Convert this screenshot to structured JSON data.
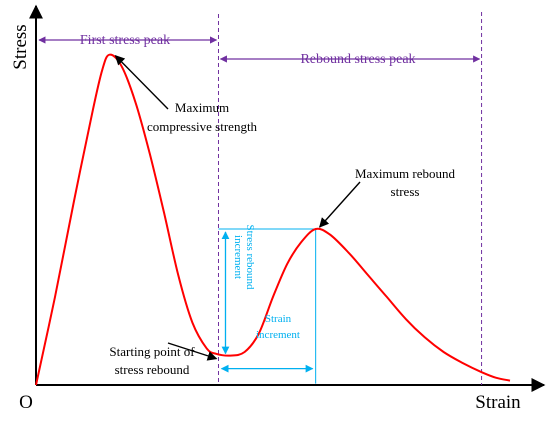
{
  "chart_data": {
    "type": "line",
    "xlabel": "Strain",
    "ylabel": "Stress",
    "origin_label": "O",
    "grid": false,
    "legend": "none",
    "x_range": [
      0,
      1
    ],
    "y_range": [
      0,
      1
    ],
    "series": [
      {
        "color": "#ff0000",
        "x": [
          0.0,
          0.04,
          0.08,
          0.12,
          0.14,
          0.155,
          0.18,
          0.21,
          0.24,
          0.27,
          0.3,
          0.33,
          0.36,
          0.38,
          0.41,
          0.44,
          0.47,
          0.5,
          0.53,
          0.56,
          0.59,
          0.62,
          0.66,
          0.7,
          0.74,
          0.78,
          0.82,
          0.86,
          0.9,
          0.94,
          0.97,
          1.0
        ],
        "y": [
          0.0,
          0.24,
          0.5,
          0.75,
          0.86,
          0.9,
          0.87,
          0.77,
          0.63,
          0.47,
          0.3,
          0.17,
          0.1,
          0.085,
          0.08,
          0.09,
          0.14,
          0.24,
          0.33,
          0.39,
          0.425,
          0.41,
          0.36,
          0.3,
          0.24,
          0.18,
          0.13,
          0.09,
          0.06,
          0.035,
          0.02,
          0.012
        ]
      }
    ],
    "markers": {
      "first_peak_boundary_x": 0.385,
      "end_boundary_x": 0.94,
      "first_peak_point": [
        0.155,
        0.9
      ],
      "rebound_start_point": [
        0.385,
        0.08
      ],
      "rebound_peak_point": [
        0.59,
        0.425
      ]
    },
    "annotations": {
      "first_stress_peak": "First stress peak",
      "rebound_stress_peak": "Rebound stress  peak",
      "max_compressive_line1": "Maximum",
      "max_compressive_line2": "compressive strength",
      "max_rebound_line1": "Maximum rebound",
      "max_rebound_line2": "stress",
      "starting_point_line1": "Starting point of",
      "starting_point_line2": "stress rebound",
      "stress_increment_line1": "Stress  rebound",
      "stress_increment_line2": "increment",
      "strain_increment_line1": "Strain",
      "strain_increment_line2": "increment"
    },
    "colors": {
      "curve": "#ff0000",
      "purple": "#7030a0",
      "blue": "#00b0f0",
      "axis": "#000000"
    }
  }
}
